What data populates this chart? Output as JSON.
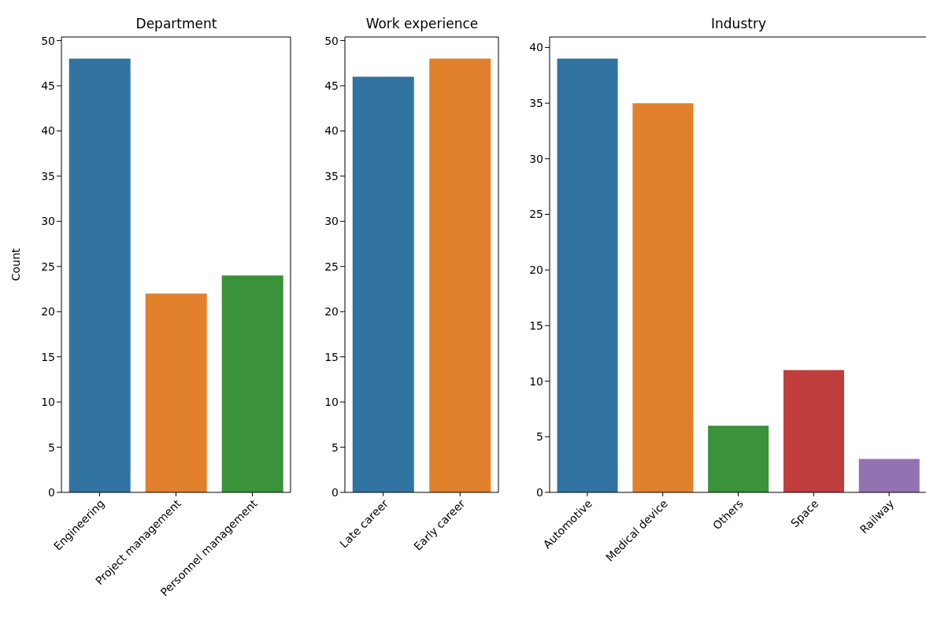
{
  "chart_data": [
    {
      "type": "bar",
      "title": "Department",
      "ylabel": "Count",
      "categories": [
        "Engineering",
        "Project management",
        "Personnel management"
      ],
      "values": [
        48,
        22,
        24
      ],
      "colors": [
        "#3274a1",
        "#e1812c",
        "#3a923a"
      ],
      "ylim": [
        0,
        50.4
      ],
      "yticks": [
        0,
        5,
        10,
        15,
        20,
        25,
        30,
        35,
        40,
        45,
        50
      ],
      "grid": false
    },
    {
      "type": "bar",
      "title": "Work experience",
      "categories": [
        "Late career",
        "Early career"
      ],
      "values": [
        46,
        48
      ],
      "colors": [
        "#3274a1",
        "#e1812c"
      ],
      "ylim": [
        0,
        50.4
      ],
      "yticks": [
        0,
        5,
        10,
        15,
        20,
        25,
        30,
        35,
        40,
        45,
        50
      ],
      "grid": false
    },
    {
      "type": "bar",
      "title": "Industry",
      "categories": [
        "Automotive",
        "Medical device",
        "Others",
        "Space",
        "Railway"
      ],
      "values": [
        39,
        35,
        6,
        11,
        3
      ],
      "colors": [
        "#3274a1",
        "#e1812c",
        "#3a923a",
        "#c03d3e",
        "#9372b2"
      ],
      "ylim": [
        0,
        40.95
      ],
      "yticks": [
        0,
        5,
        10,
        15,
        20,
        25,
        30,
        35,
        40
      ],
      "grid": false
    }
  ]
}
